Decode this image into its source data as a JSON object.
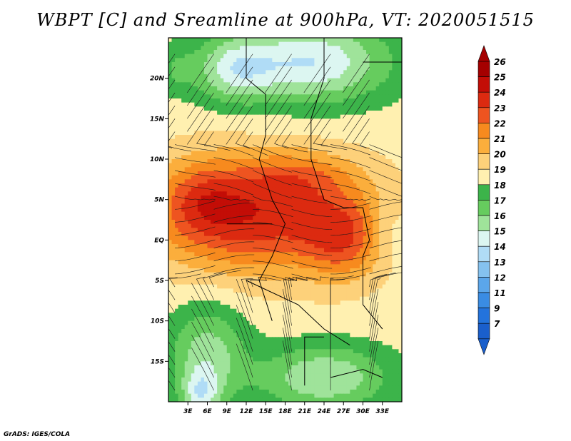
{
  "title": "WBPT [C] and Sreamline at 900hPa, VT: 2020051515",
  "credit": "GrADS: IGES/COLA",
  "map": {
    "lon_range": [
      0,
      36
    ],
    "lat_range": [
      -20,
      25
    ],
    "x_ticks": [
      {
        "value": 3,
        "label": "3E"
      },
      {
        "value": 6,
        "label": "6E"
      },
      {
        "value": 9,
        "label": "9E"
      },
      {
        "value": 12,
        "label": "12E"
      },
      {
        "value": 15,
        "label": "15E"
      },
      {
        "value": 18,
        "label": "18E"
      },
      {
        "value": 21,
        "label": "21E"
      },
      {
        "value": 24,
        "label": "24E"
      },
      {
        "value": 27,
        "label": "27E"
      },
      {
        "value": 30,
        "label": "30E"
      },
      {
        "value": 33,
        "label": "33E"
      }
    ],
    "y_ticks": [
      {
        "value": 20,
        "label": "20N"
      },
      {
        "value": 15,
        "label": "15N"
      },
      {
        "value": 10,
        "label": "10N"
      },
      {
        "value": 5,
        "label": "5N"
      },
      {
        "value": 0,
        "label": "EQ"
      },
      {
        "value": -5,
        "label": "5S"
      },
      {
        "value": -10,
        "label": "10S"
      },
      {
        "value": -15,
        "label": "15S"
      }
    ]
  },
  "colorbar": {
    "levels": [
      {
        "label": "26",
        "color": "#a50000"
      },
      {
        "label": "25",
        "color": "#c30d06"
      },
      {
        "label": "24",
        "color": "#dc2a10"
      },
      {
        "label": "23",
        "color": "#ee5420"
      },
      {
        "label": "22",
        "color": "#f78a1e"
      },
      {
        "label": "21",
        "color": "#fbae3c"
      },
      {
        "label": "20",
        "color": "#fdd17a"
      },
      {
        "label": "19",
        "color": "#fff0b0"
      },
      {
        "label": "18",
        "color": "#3cb44a"
      },
      {
        "label": "17",
        "color": "#66cc5e"
      },
      {
        "label": "16",
        "color": "#9fe39a"
      },
      {
        "label": "15",
        "color": "#dcf6f1"
      },
      {
        "label": "14",
        "color": "#b0dcf6"
      },
      {
        "label": "13",
        "color": "#85c2ef"
      },
      {
        "label": "12",
        "color": "#5ba6ea"
      },
      {
        "label": "11",
        "color": "#3a8ce3"
      },
      {
        "label": "9",
        "color": "#2373dc"
      },
      {
        "label": "7",
        "color": "#1a5fcc"
      }
    ]
  }
}
